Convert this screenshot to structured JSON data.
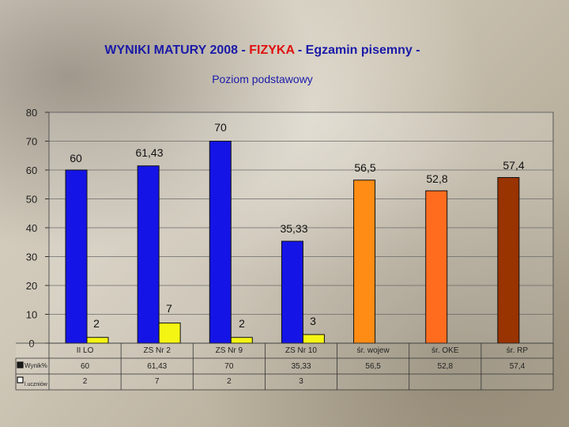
{
  "slide": {
    "title_part1": "WYNIKI MATURY 2008 - ",
    "title_highlight": "FIZYKA",
    "title_part2": " - Egzamin pisemny -",
    "subtitle": "Poziom podstawowy"
  },
  "colors": {
    "title": "#1a1aa8",
    "highlight": "#e01010",
    "school_bar": "#1414e6",
    "students_bar": "#f5f514",
    "woj_bar": "#ff8c14",
    "oke_bar": "#ff6c1e",
    "rp_bar": "#993300"
  },
  "chart_data": {
    "type": "bar",
    "title": "",
    "xlabel": "",
    "ylabel": "",
    "ylim": [
      0,
      80
    ],
    "yticks": [
      "0",
      "10",
      "20",
      "30",
      "40",
      "50",
      "60",
      "70",
      "80"
    ],
    "grid": true,
    "categories": [
      "II LO",
      "ZS Nr 2",
      "ZS Nr 9",
      "ZS Nr 10",
      "śr. wojew",
      "śr. OKE",
      "śr. RP"
    ],
    "series": [
      {
        "name": "Wynik%",
        "values": [
          60,
          61.43,
          70,
          35.33,
          56.5,
          52.8,
          57.4
        ],
        "labels": [
          "60",
          "61,43",
          "70",
          "35,33",
          "56,5",
          "52,8",
          "57,4"
        ],
        "bar_colors": [
          "#1414e6",
          "#1414e6",
          "#1414e6",
          "#1414e6",
          "#ff8c14",
          "#ff6c1e",
          "#993300"
        ]
      },
      {
        "name": "l.uczniów",
        "values": [
          2,
          7,
          2,
          3,
          null,
          null,
          null
        ],
        "labels": [
          "2",
          "7",
          "2",
          "3",
          "",
          "",
          ""
        ],
        "bar_colors": [
          "#f5f514",
          "#f5f514",
          "#f5f514",
          "#f5f514"
        ]
      }
    ],
    "table": {
      "rows": [
        {
          "legend": "Wynik%",
          "cells": [
            "60",
            "61,43",
            "70",
            "35,33",
            "56,5",
            "52,8",
            "57,4"
          ]
        },
        {
          "legend": "l.uczniów",
          "cells": [
            "2",
            "7",
            "2",
            "3",
            "",
            "",
            ""
          ]
        }
      ]
    }
  }
}
